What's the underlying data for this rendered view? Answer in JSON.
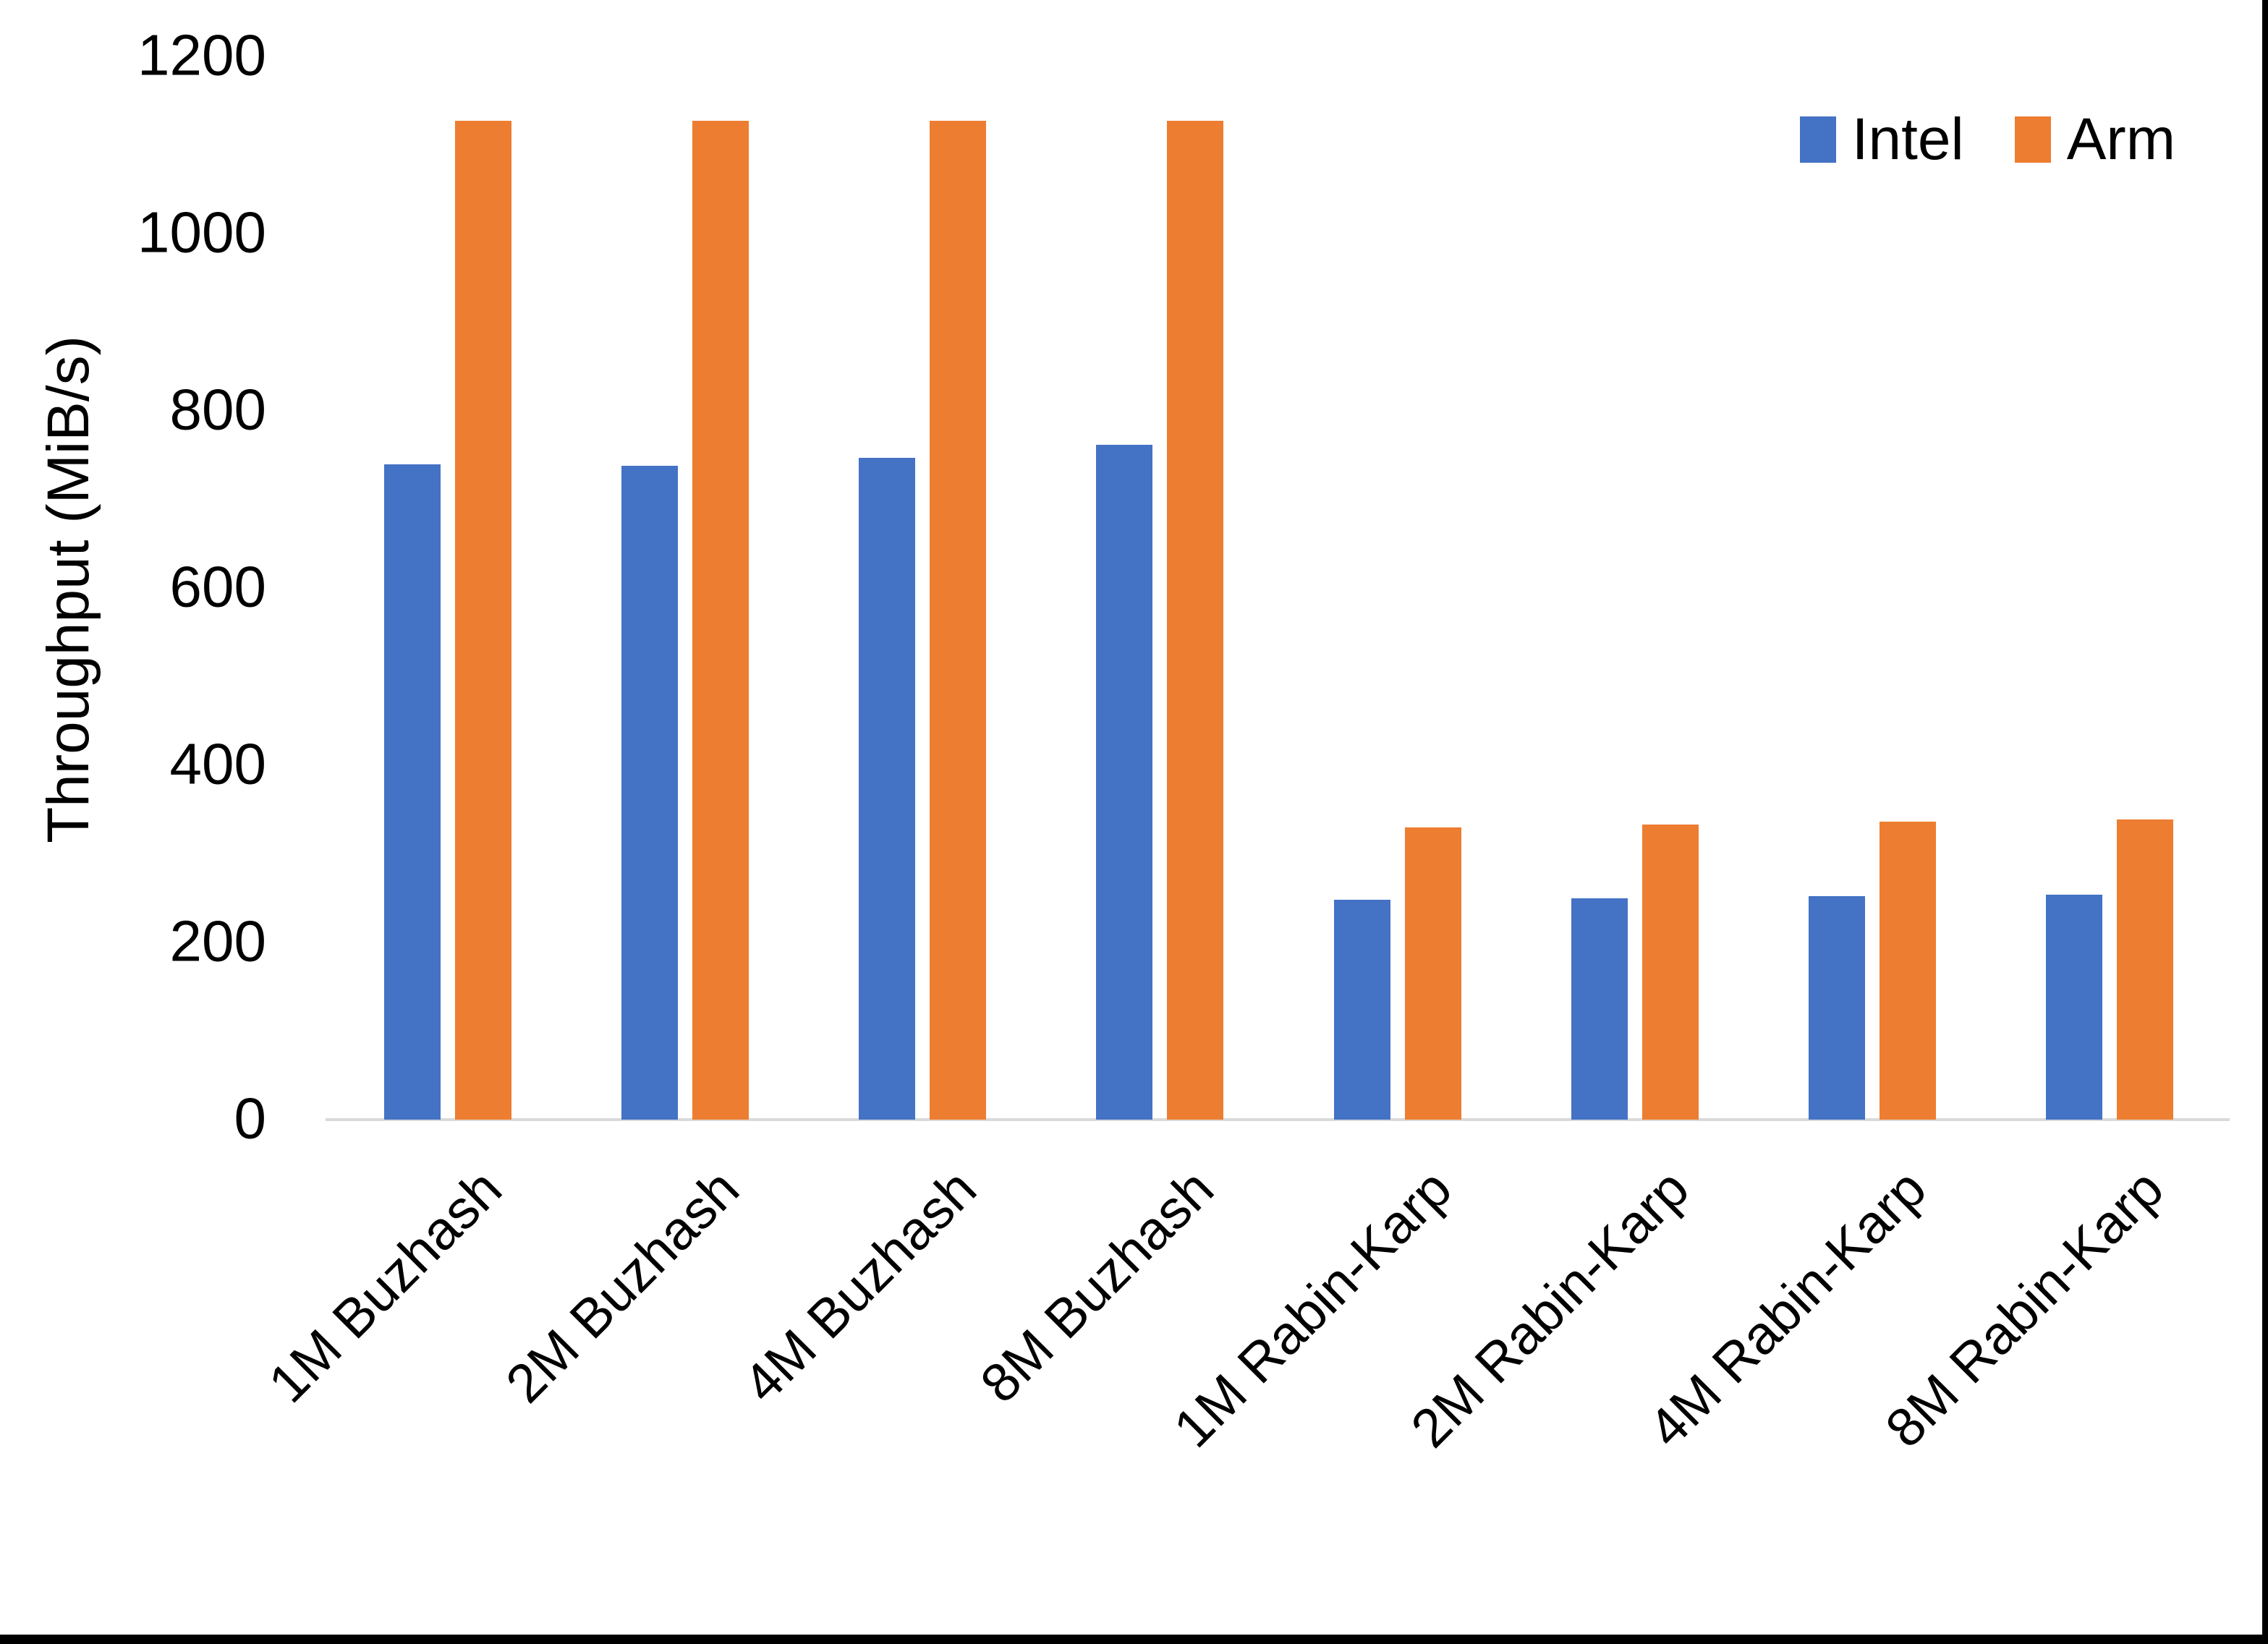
{
  "chart_data": {
    "type": "bar",
    "title": "",
    "xlabel": "",
    "ylabel": "Throughput (MiB/s)",
    "ylim": [
      0,
      1200
    ],
    "yticks": [
      0,
      200,
      400,
      600,
      800,
      1000,
      1200
    ],
    "grid": false,
    "legend_position": "top-right",
    "categories": [
      "1M Buzhash",
      "2M Buzhash",
      "4M Buzhash",
      "8M Buzhash",
      "1M Rabin-Karp",
      "2M Rabin-Karp",
      "4M Rabin-Karp",
      "8M Rabin-Karp"
    ],
    "series": [
      {
        "name": "Intel",
        "color": "#4472C4",
        "values": [
          740,
          738,
          747,
          762,
          248,
          250,
          252,
          254
        ]
      },
      {
        "name": "Arm",
        "color": "#ED7D31",
        "values": [
          1127,
          1127,
          1127,
          1127,
          330,
          333,
          336,
          339
        ]
      }
    ]
  },
  "colors": {
    "background": "#FFFFFF",
    "axis_line": "#D9D9D9",
    "text": "#000000",
    "frame_border": "#000000"
  }
}
